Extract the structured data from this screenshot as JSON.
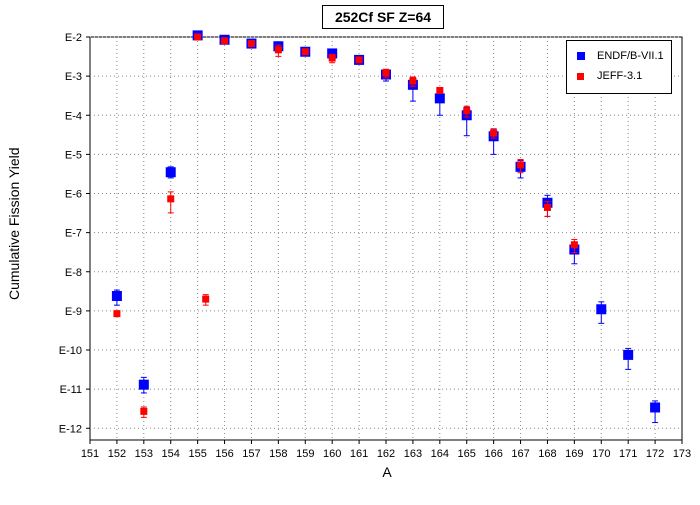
{
  "chart_data": {
    "type": "scatter",
    "title": "252Cf SF Z=64",
    "xlabel": "A",
    "ylabel": "Cumulative Fission Yield",
    "x_ticks": [
      151,
      152,
      153,
      154,
      155,
      156,
      157,
      158,
      159,
      160,
      161,
      162,
      163,
      164,
      165,
      166,
      167,
      168,
      169,
      170,
      171,
      172,
      173
    ],
    "xlim": [
      151,
      173
    ],
    "ylim_log10": [
      -12.3,
      -2
    ],
    "y_ticks": [
      {
        "exp": -2,
        "label": "E-2"
      },
      {
        "exp": -3,
        "label": "E-3"
      },
      {
        "exp": -4,
        "label": "E-4"
      },
      {
        "exp": -5,
        "label": "E-5"
      },
      {
        "exp": -6,
        "label": "E-6"
      },
      {
        "exp": -7,
        "label": "E-7"
      },
      {
        "exp": -8,
        "label": "E-8"
      },
      {
        "exp": -9,
        "label": "E-9"
      },
      {
        "exp": -10,
        "label": "E-10"
      },
      {
        "exp": -11,
        "label": "E-11"
      },
      {
        "exp": -12,
        "label": "E-12"
      }
    ],
    "grid": true,
    "legend_position": "top-right",
    "series": [
      {
        "name": "ENDF/B-VII.1",
        "color": "#0000ff",
        "marker": "square-large",
        "points": [
          {
            "x": 152,
            "y": 2.4e-09,
            "lo": 1.4e-09,
            "hi": 3.4e-09
          },
          {
            "x": 153,
            "y": 1.3e-11,
            "lo": 8e-12,
            "hi": 2e-11
          },
          {
            "x": 154,
            "y": 3.5e-06,
            "lo": 2.5e-06,
            "hi": 4.8e-06
          },
          {
            "x": 155,
            "y": 0.011,
            "lo": 0.01,
            "hi": 0.012
          },
          {
            "x": 156,
            "y": 0.0085,
            "lo": 0.0078,
            "hi": 0.0092
          },
          {
            "x": 157,
            "y": 0.0068,
            "lo": 0.0063,
            "hi": 0.0073
          },
          {
            "x": 158,
            "y": 0.0058,
            "lo": 0.0048,
            "hi": 0.007
          },
          {
            "x": 159,
            "y": 0.0042,
            "lo": 0.0038,
            "hi": 0.0046
          },
          {
            "x": 160,
            "y": 0.0038,
            "lo": 0.0034,
            "hi": 0.0043
          },
          {
            "x": 161,
            "y": 0.0026,
            "lo": 0.0023,
            "hi": 0.0029
          },
          {
            "x": 162,
            "y": 0.0011,
            "lo": 0.00075,
            "hi": 0.0014
          },
          {
            "x": 163,
            "y": 0.0006,
            "lo": 0.00023,
            "hi": 0.0009
          },
          {
            "x": 164,
            "y": 0.00027,
            "lo": 0.0001,
            "hi": 0.0004
          },
          {
            "x": 165,
            "y": 0.0001,
            "lo": 3e-05,
            "hi": 0.00016
          },
          {
            "x": 166,
            "y": 2.9e-05,
            "lo": 1e-05,
            "hi": 4.5e-05
          },
          {
            "x": 167,
            "y": 4.8e-06,
            "lo": 2.5e-06,
            "hi": 7e-06
          },
          {
            "x": 168,
            "y": 5.8e-07,
            "lo": 2.6e-07,
            "hi": 9e-07
          },
          {
            "x": 169,
            "y": 3.7e-08,
            "lo": 1.6e-08,
            "hi": 5.5e-08
          },
          {
            "x": 170,
            "y": 1.1e-09,
            "lo": 4.8e-10,
            "hi": 1.7e-09
          },
          {
            "x": 171,
            "y": 7.5e-11,
            "lo": 3.2e-11,
            "hi": 1.1e-10
          },
          {
            "x": 172,
            "y": 3.4e-12,
            "lo": 1.4e-12,
            "hi": 5e-12
          }
        ]
      },
      {
        "name": "JEFF-3.1",
        "color": "#ff0000",
        "marker": "square-small",
        "points": [
          {
            "x": 152,
            "y": 8.5e-10,
            "lo": 7.5e-10,
            "hi": 9.5e-10
          },
          {
            "x": 153,
            "y": 2.7e-12,
            "lo": 1.9e-12,
            "hi": 3.5e-12
          },
          {
            "x": 154,
            "y": 7.3e-07,
            "lo": 3.2e-07,
            "hi": 1.1e-06
          },
          {
            "x": 155,
            "y": 0.01,
            "lo": 0.009,
            "hi": 0.011
          },
          {
            "x": 156,
            "y": 0.008,
            "lo": 0.0072,
            "hi": 0.0088
          },
          {
            "x": 157,
            "y": 0.0068,
            "lo": 0.0062,
            "hi": 0.0074
          },
          {
            "x": 158,
            "y": 0.0047,
            "lo": 0.0032,
            "hi": 0.0062
          },
          {
            "x": 159,
            "y": 0.0042,
            "lo": 0.0038,
            "hi": 0.0046
          },
          {
            "x": 160,
            "y": 0.0029,
            "lo": 0.0022,
            "hi": 0.0036
          },
          {
            "x": 161,
            "y": 0.0026,
            "lo": 0.0023,
            "hi": 0.0029
          },
          {
            "x": 162,
            "y": 0.0012,
            "lo": 0.0009,
            "hi": 0.0015
          },
          {
            "x": 163,
            "y": 0.00075,
            "lo": 0.00055,
            "hi": 0.00095
          },
          {
            "x": 164,
            "y": 0.00043,
            "lo": 0.00036,
            "hi": 0.0005
          },
          {
            "x": 165,
            "y": 0.00013,
            "lo": 9e-05,
            "hi": 0.00017
          },
          {
            "x": 166,
            "y": 3.5e-05,
            "lo": 2.6e-05,
            "hi": 4.4e-05
          },
          {
            "x": 167,
            "y": 5.4e-06,
            "lo": 3.4e-06,
            "hi": 7.4e-06
          },
          {
            "x": 168,
            "y": 4.4e-07,
            "lo": 2.6e-07,
            "hi": 6.2e-07
          },
          {
            "x": 169,
            "y": 4.9e-08,
            "lo": 3.1e-08,
            "hi": 6.7e-08
          }
        ]
      }
    ]
  },
  "legend": {
    "items": [
      {
        "label": "ENDF/B-VII.1",
        "color": "#0000ff"
      },
      {
        "label": "JEFF-3.1",
        "color": "#ff0000"
      }
    ]
  },
  "extra_points": [
    {
      "series": "JEFF-3.1",
      "x": 155.3,
      "y": 2e-09,
      "lo": 1.4e-09,
      "hi": 2.6e-09
    }
  ]
}
